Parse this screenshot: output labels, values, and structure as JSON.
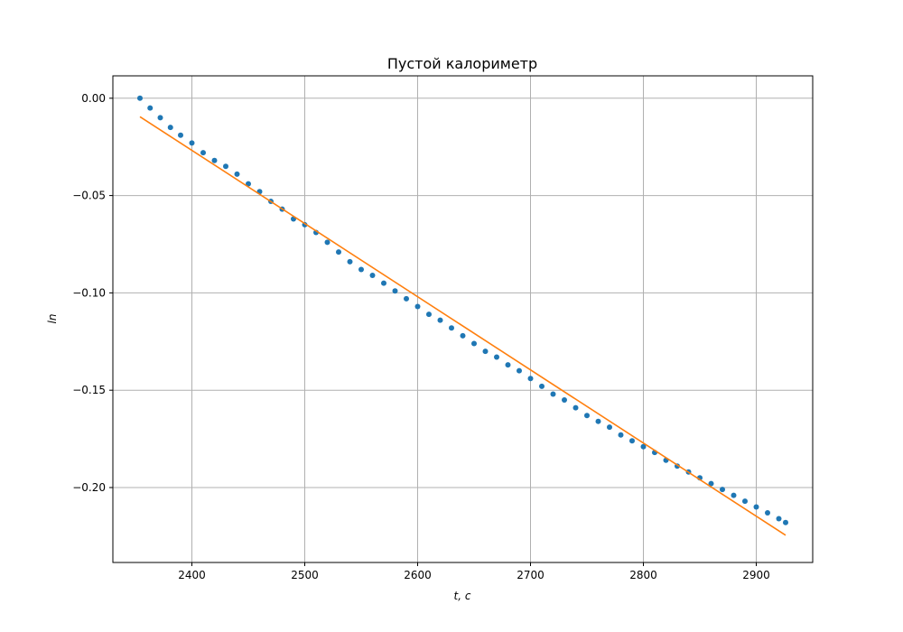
{
  "chart_data": {
    "type": "scatter",
    "title": "Пустой калориметр",
    "xlabel": "t, c",
    "ylabel": "ln",
    "xlim": [
      2330,
      2950
    ],
    "ylim": [
      -0.2385,
      0.0115
    ],
    "xticks": [
      2400,
      2500,
      2600,
      2700,
      2800,
      2900
    ],
    "yticks": [
      0.0,
      -0.05,
      -0.1,
      -0.15,
      -0.2
    ],
    "ytick_labels": [
      "0.00",
      "−0.05",
      "−0.10",
      "−0.15",
      "−0.20"
    ],
    "grid": true,
    "series": [
      {
        "kind": "scatter",
        "color": "#1f77b4",
        "x": [
          2354,
          2363,
          2372,
          2381,
          2390,
          2400,
          2410,
          2420,
          2430,
          2440,
          2450,
          2460,
          2470,
          2480,
          2490,
          2500,
          2510,
          2520,
          2530,
          2540,
          2550,
          2560,
          2570,
          2580,
          2590,
          2600,
          2610,
          2620,
          2630,
          2640,
          2650,
          2660,
          2670,
          2680,
          2690,
          2700,
          2710,
          2720,
          2730,
          2740,
          2750,
          2760,
          2770,
          2780,
          2790,
          2800,
          2810,
          2820,
          2830,
          2840,
          2850,
          2860,
          2870,
          2880,
          2890,
          2900,
          2910,
          2920,
          2926
        ],
        "y": [
          0.0,
          -0.005,
          -0.01,
          -0.015,
          -0.019,
          -0.023,
          -0.028,
          -0.032,
          -0.035,
          -0.039,
          -0.044,
          -0.048,
          -0.053,
          -0.057,
          -0.062,
          -0.065,
          -0.069,
          -0.074,
          -0.079,
          -0.084,
          -0.088,
          -0.091,
          -0.095,
          -0.099,
          -0.103,
          -0.107,
          -0.111,
          -0.114,
          -0.118,
          -0.122,
          -0.126,
          -0.13,
          -0.133,
          -0.137,
          -0.14,
          -0.144,
          -0.148,
          -0.152,
          -0.155,
          -0.159,
          -0.163,
          -0.166,
          -0.169,
          -0.173,
          -0.176,
          -0.179,
          -0.182,
          -0.186,
          -0.189,
          -0.192,
          -0.195,
          -0.198,
          -0.201,
          -0.204,
          -0.207,
          -0.21,
          -0.213,
          -0.216,
          -0.218
        ]
      },
      {
        "kind": "line",
        "color": "#ff7f0e",
        "x": [
          2354,
          2926
        ],
        "y": [
          -0.0095,
          -0.2245
        ]
      }
    ]
  }
}
